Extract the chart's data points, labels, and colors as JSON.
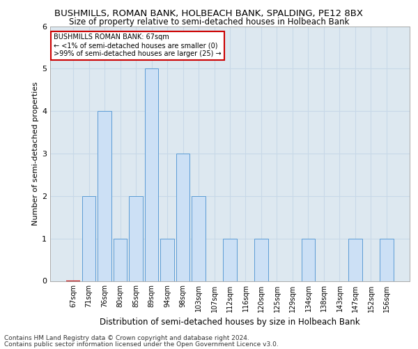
{
  "title": "BUSHMILLS, ROMAN BANK, HOLBEACH BANK, SPALDING, PE12 8BX",
  "subtitle": "Size of property relative to semi-detached houses in Holbeach Bank",
  "xlabel": "Distribution of semi-detached houses by size in Holbeach Bank",
  "ylabel": "Number of semi-detached properties",
  "categories": [
    "67sqm",
    "71sqm",
    "76sqm",
    "80sqm",
    "85sqm",
    "89sqm",
    "94sqm",
    "98sqm",
    "103sqm",
    "107sqm",
    "112sqm",
    "116sqm",
    "120sqm",
    "125sqm",
    "129sqm",
    "134sqm",
    "138sqm",
    "143sqm",
    "147sqm",
    "152sqm",
    "156sqm"
  ],
  "values": [
    0,
    2,
    4,
    1,
    2,
    5,
    1,
    3,
    2,
    0,
    1,
    0,
    1,
    0,
    0,
    1,
    0,
    0,
    1,
    0,
    1
  ],
  "highlight_index": 0,
  "bar_color": "#cce0f5",
  "bar_edge_color": "#5b9bd5",
  "highlight_bar_edge_color": "#cc0000",
  "ylim_max": 6,
  "yticks": [
    0,
    1,
    2,
    3,
    4,
    5,
    6
  ],
  "annotation_box_text": "BUSHMILLS ROMAN BANK: 67sqm\n← <1% of semi-detached houses are smaller (0)\n>99% of semi-detached houses are larger (25) →",
  "annotation_box_color": "#ffffff",
  "annotation_box_edge_color": "#cc0000",
  "footer_line1": "Contains HM Land Registry data © Crown copyright and database right 2024.",
  "footer_line2": "Contains public sector information licensed under the Open Government Licence v3.0.",
  "grid_color": "#c8d8e8",
  "background_color": "#dde8f0",
  "title_fontsize": 9.5,
  "subtitle_fontsize": 8.5,
  "axis_label_fontsize": 8,
  "tick_fontsize": 7,
  "footer_fontsize": 6.5
}
